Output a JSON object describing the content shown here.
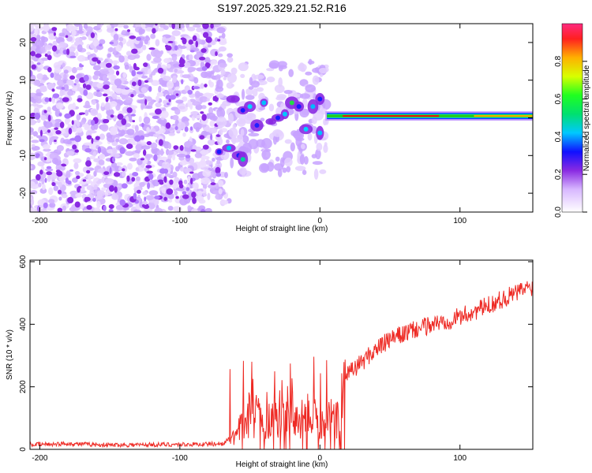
{
  "title": "S197.2025.329.21.52.R16",
  "colors": {
    "snr_line": "#ee2a24",
    "signal_core": "#ee1111",
    "signal_band": "#22cc22",
    "noise": "#8a2be2"
  },
  "chart_data": [
    {
      "type": "heatmap",
      "name": "spectrogram",
      "xlabel": "Height of straight line (km)",
      "ylabel": "Frequency (Hz)",
      "xlim": [
        -207,
        152
      ],
      "ylim": [
        -25,
        25
      ],
      "xticks": [
        -200,
        -100,
        0,
        100
      ],
      "yticks": [
        -20,
        -10,
        0,
        10,
        20
      ],
      "colorbar": {
        "label": "Normalized spectral amplitude",
        "range": [
          0,
          1
        ],
        "ticks": [
          0.0,
          0.2,
          0.4,
          0.6,
          0.8
        ]
      },
      "features": {
        "noise_region_x": [
          -207,
          -72
        ],
        "transition_region_x": [
          -72,
          5
        ],
        "carrier_start_x": 5,
        "carrier_frequency_hz": 0.5,
        "carrier_peak_amplitude": 0.95
      }
    },
    {
      "type": "line",
      "name": "snr",
      "xlabel": "Height of straight line (km)",
      "ylabel": "SNR (10 * v/v)",
      "xlim": [
        -207,
        152
      ],
      "ylim": [
        0,
        605
      ],
      "xticks": [
        -200,
        -100,
        0,
        100
      ],
      "yticks": [
        0,
        200,
        400,
        600
      ],
      "series": [
        {
          "name": "SNR",
          "x": [
            -207,
            -180,
            -150,
            -120,
            -90,
            -70,
            -60,
            -50,
            -40,
            -30,
            -20,
            -10,
            0,
            10,
            17,
            20,
            30,
            40,
            50,
            60,
            70,
            80,
            90,
            100,
            110,
            120,
            130,
            140,
            150
          ],
          "values": [
            15,
            18,
            14,
            15,
            16,
            18,
            45,
            120,
            90,
            110,
            95,
            100,
            80,
            90,
            160,
            240,
            280,
            320,
            350,
            370,
            385,
            400,
            410,
            425,
            440,
            460,
            480,
            500,
            520
          ]
        }
      ]
    }
  ]
}
